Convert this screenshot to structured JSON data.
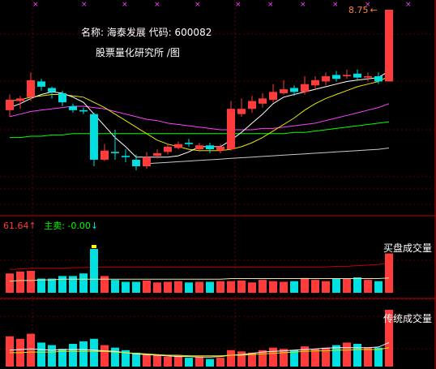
{
  "stock": {
    "title": "名称: 海泰发展 代码: 600082",
    "subtitle": "股票量化研究所 /图"
  },
  "price_panel": {
    "high_label": "8.75",
    "high_arrow": "←"
  },
  "volume_panel": {
    "buy_label": "61.64",
    "buy_arrow": "↑",
    "sell_label": "主卖: -0.00",
    "sell_arrow": "↓",
    "title": "买盘成交量"
  },
  "traditional_panel": {
    "title": "传统成交量"
  },
  "colors": {
    "up": "#ff3b3b",
    "down": "#00e0e0",
    "ma5": "#ffffff",
    "ma10": "#e8e800",
    "ma20": "#ff40ff",
    "ma30": "#00ff00",
    "ma60": "#c8c8c8",
    "grid": "#b00000",
    "label": "#ffffff",
    "buy_text": "#ff3b3b",
    "sell_text": "#00ff00",
    "high_text": "#ff8040"
  },
  "chart_data": {
    "type": "candlestick",
    "candles": [
      {
        "o": 7.98,
        "c": 8.06,
        "h": 8.1,
        "l": 7.93,
        "up": true
      },
      {
        "o": 8.05,
        "c": 8.07,
        "h": 8.09,
        "l": 7.99,
        "up": true
      },
      {
        "o": 8.08,
        "c": 8.21,
        "h": 8.27,
        "l": 8.05,
        "up": true
      },
      {
        "o": 8.2,
        "c": 8.16,
        "h": 8.22,
        "l": 8.13,
        "up": false
      },
      {
        "o": 8.15,
        "c": 8.12,
        "h": 8.16,
        "l": 8.07,
        "up": false
      },
      {
        "o": 8.11,
        "c": 8.04,
        "h": 8.13,
        "l": 8.01,
        "up": false
      },
      {
        "o": 8.01,
        "c": 7.98,
        "h": 8.03,
        "l": 7.96,
        "up": false
      },
      {
        "o": 7.98,
        "c": 7.97,
        "h": 8.0,
        "l": 7.95,
        "up": false
      },
      {
        "o": 7.95,
        "c": 7.6,
        "h": 7.96,
        "l": 7.55,
        "up": false
      },
      {
        "o": 7.6,
        "c": 7.67,
        "h": 7.72,
        "l": 7.59,
        "up": true
      },
      {
        "o": 7.66,
        "c": 7.65,
        "h": 7.83,
        "l": 7.6,
        "up": false
      },
      {
        "o": 7.63,
        "c": 7.62,
        "h": 7.68,
        "l": 7.58,
        "up": false
      },
      {
        "o": 7.6,
        "c": 7.55,
        "h": 7.64,
        "l": 7.52,
        "up": false
      },
      {
        "o": 7.55,
        "c": 7.62,
        "h": 7.66,
        "l": 7.53,
        "up": true
      },
      {
        "o": 7.63,
        "c": 7.65,
        "h": 7.68,
        "l": 7.61,
        "up": true
      },
      {
        "o": 7.66,
        "c": 7.7,
        "h": 7.72,
        "l": 7.64,
        "up": true
      },
      {
        "o": 7.69,
        "c": 7.72,
        "h": 7.74,
        "l": 7.68,
        "up": true
      },
      {
        "o": 7.73,
        "c": 7.72,
        "h": 7.76,
        "l": 7.7,
        "up": false
      },
      {
        "o": 7.68,
        "c": 7.71,
        "h": 7.73,
        "l": 7.66,
        "up": true
      },
      {
        "o": 7.71,
        "c": 7.68,
        "h": 7.73,
        "l": 7.65,
        "up": false
      },
      {
        "o": 7.67,
        "c": 7.7,
        "h": 7.72,
        "l": 7.65,
        "up": true
      },
      {
        "o": 7.68,
        "c": 7.99,
        "h": 8.05,
        "l": 7.67,
        "up": true
      },
      {
        "o": 7.95,
        "c": 7.99,
        "h": 8.07,
        "l": 7.93,
        "up": true
      },
      {
        "o": 7.99,
        "c": 8.05,
        "h": 8.09,
        "l": 7.96,
        "up": true
      },
      {
        "o": 8.03,
        "c": 8.07,
        "h": 8.11,
        "l": 8.0,
        "up": true
      },
      {
        "o": 8.06,
        "c": 8.12,
        "h": 8.18,
        "l": 8.04,
        "up": true
      },
      {
        "o": 8.11,
        "c": 8.14,
        "h": 8.21,
        "l": 8.1,
        "up": true
      },
      {
        "o": 8.15,
        "c": 8.12,
        "h": 8.17,
        "l": 8.09,
        "up": false
      },
      {
        "o": 8.12,
        "c": 8.18,
        "h": 8.24,
        "l": 8.1,
        "up": true
      },
      {
        "o": 8.17,
        "c": 8.21,
        "h": 8.24,
        "l": 8.14,
        "up": true
      },
      {
        "o": 8.2,
        "c": 8.24,
        "h": 8.27,
        "l": 8.17,
        "up": true
      },
      {
        "o": 8.25,
        "c": 8.22,
        "h": 8.28,
        "l": 8.2,
        "up": false
      },
      {
        "o": 8.24,
        "c": 8.25,
        "h": 8.29,
        "l": 8.22,
        "up": true
      },
      {
        "o": 8.26,
        "c": 8.23,
        "h": 8.29,
        "l": 8.21,
        "up": false
      },
      {
        "o": 8.23,
        "c": 8.24,
        "h": 8.27,
        "l": 8.2,
        "up": true
      },
      {
        "o": 8.24,
        "c": 8.2,
        "h": 8.27,
        "l": 8.18,
        "up": false
      },
      {
        "o": 8.2,
        "c": 8.75,
        "h": 8.75,
        "l": 8.2,
        "up": true
      }
    ],
    "ma5": [
      8.0,
      8.03,
      8.07,
      8.1,
      8.12,
      8.11,
      8.08,
      8.04,
      7.95,
      7.86,
      7.77,
      7.7,
      7.62,
      7.62,
      7.62,
      7.62,
      7.63,
      7.66,
      7.7,
      7.7,
      7.7,
      7.75,
      7.81,
      7.88,
      7.95,
      8.03,
      8.08,
      8.1,
      8.12,
      8.14,
      8.16,
      8.18,
      8.2,
      8.21,
      8.22,
      8.23,
      8.28
    ],
    "ma10": [
      8.05,
      8.06,
      8.08,
      8.09,
      8.1,
      8.1,
      8.09,
      8.08,
      8.04,
      8.0,
      7.95,
      7.9,
      7.85,
      7.8,
      7.75,
      7.72,
      7.7,
      7.68,
      7.67,
      7.67,
      7.67,
      7.68,
      7.7,
      7.73,
      7.77,
      7.82,
      7.87,
      7.92,
      7.98,
      8.03,
      8.07,
      8.1,
      8.13,
      8.16,
      8.18,
      8.2,
      8.24
    ],
    "ma20": [
      7.93,
      7.95,
      7.97,
      7.98,
      7.99,
      8.0,
      8.01,
      8.01,
      8.0,
      7.99,
      7.97,
      7.95,
      7.93,
      7.91,
      7.9,
      7.88,
      7.87,
      7.86,
      7.85,
      7.84,
      7.83,
      7.83,
      7.83,
      7.83,
      7.84,
      7.84,
      7.85,
      7.86,
      7.87,
      7.88,
      7.9,
      7.92,
      7.94,
      7.96,
      7.98,
      8.0,
      8.03
    ],
    "ma30": [
      7.77,
      7.77,
      7.78,
      7.78,
      7.79,
      7.79,
      7.8,
      7.8,
      7.8,
      7.8,
      7.8,
      7.8,
      7.8,
      7.8,
      7.8,
      7.8,
      7.8,
      7.8,
      7.8,
      7.8,
      7.8,
      7.8,
      7.8,
      7.8,
      7.8,
      7.8,
      7.8,
      7.81,
      7.81,
      7.82,
      7.83,
      7.84,
      7.85,
      7.86,
      7.87,
      7.88,
      7.89
    ],
    "ma60": [
      null,
      null,
      null,
      null,
      null,
      null,
      null,
      null,
      null,
      null,
      null,
      null,
      null,
      7.57,
      7.575,
      7.58,
      7.585,
      7.59,
      7.595,
      7.6,
      7.605,
      7.61,
      7.615,
      7.62,
      7.625,
      7.63,
      7.635,
      7.64,
      7.645,
      7.65,
      7.655,
      7.66,
      7.665,
      7.67,
      7.675,
      7.68,
      7.69
    ],
    "buy_volume": [
      0.3,
      0.33,
      0.34,
      0.22,
      0.22,
      0.26,
      0.26,
      0.3,
      0.68,
      0.26,
      0.2,
      0.17,
      0.17,
      0.19,
      0.16,
      0.17,
      0.18,
      0.16,
      0.17,
      0.17,
      0.18,
      0.18,
      0.19,
      0.16,
      0.2,
      0.18,
      0.17,
      0.18,
      0.23,
      0.2,
      0.18,
      0.22,
      0.22,
      0.24,
      0.2,
      0.18,
      0.61
    ],
    "buy_vol_avg_a": [
      0.36,
      0.37,
      0.38,
      0.38,
      0.38,
      0.38,
      0.39,
      0.39,
      0.4,
      0.4,
      0.4,
      0.4,
      0.4,
      0.4,
      0.4,
      0.4,
      0.4,
      0.4,
      0.4,
      0.4,
      0.4,
      0.4,
      0.4,
      0.4,
      0.4,
      0.4,
      0.4,
      0.4,
      0.4,
      0.4,
      0.4,
      0.41,
      0.41,
      0.42,
      0.43,
      0.44,
      0.46
    ],
    "buy_vol_avg_b": [
      0.18,
      0.19,
      0.19,
      0.2,
      0.2,
      0.21,
      0.21,
      0.21,
      0.21,
      0.21,
      0.21,
      0.21,
      0.21,
      0.21,
      0.21,
      0.21,
      0.21,
      0.21,
      0.21,
      0.21,
      0.21,
      0.22,
      0.22,
      0.22,
      0.22,
      0.22,
      0.22,
      0.22,
      0.22,
      0.22,
      0.22,
      0.22,
      0.22,
      0.22,
      0.22,
      0.22,
      0.23
    ],
    "trad_volume": [
      0.48,
      0.44,
      0.52,
      0.38,
      0.34,
      0.28,
      0.36,
      0.4,
      0.44,
      0.34,
      0.3,
      0.26,
      0.22,
      0.2,
      0.18,
      0.16,
      0.18,
      0.14,
      0.16,
      0.12,
      0.14,
      0.26,
      0.24,
      0.22,
      0.26,
      0.3,
      0.28,
      0.26,
      0.32,
      0.28,
      0.3,
      0.34,
      0.38,
      0.36,
      0.3,
      0.3,
      0.9
    ],
    "trad_ma_a": [
      0.26,
      0.27,
      0.28,
      0.27,
      0.26,
      0.27,
      0.27,
      0.27,
      0.26,
      0.25,
      0.24,
      0.22,
      0.2,
      0.19,
      0.18,
      0.17,
      0.16,
      0.16,
      0.15,
      0.15,
      0.16,
      0.18,
      0.19,
      0.21,
      0.23,
      0.24,
      0.25,
      0.26,
      0.27,
      0.28,
      0.29,
      0.3,
      0.3,
      0.3,
      0.3,
      0.31,
      0.38
    ],
    "trad_ma_b": [
      0.22,
      0.22,
      0.23,
      0.23,
      0.23,
      0.24,
      0.24,
      0.24,
      0.24,
      0.24,
      0.23,
      0.22,
      0.21,
      0.2,
      0.19,
      0.18,
      0.18,
      0.17,
      0.17,
      0.17,
      0.17,
      0.18,
      0.18,
      0.19,
      0.2,
      0.21,
      0.22,
      0.23,
      0.24,
      0.25,
      0.25,
      0.26,
      0.26,
      0.27,
      0.27,
      0.27,
      0.3
    ]
  }
}
